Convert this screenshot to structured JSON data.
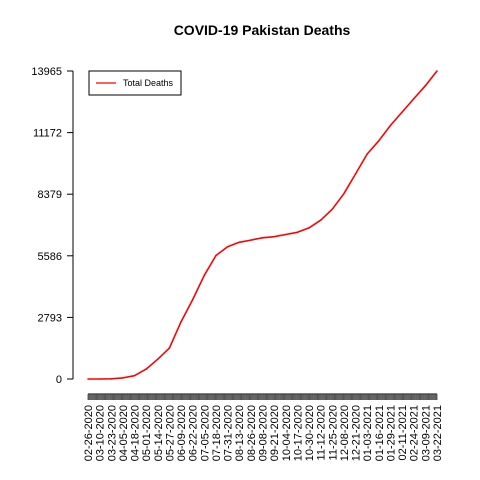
{
  "chart_data": {
    "type": "line",
    "title": "COVID-19 Pakistan Deaths",
    "xlabel": "",
    "ylabel": "",
    "ylim": [
      0,
      13965
    ],
    "y_ticks": [
      0,
      2793,
      5586,
      8379,
      11172,
      13965
    ],
    "x_tick_labels": [
      "02-26-2020",
      "03-10-2020",
      "03-23-2020",
      "04-05-2020",
      "04-18-2020",
      "05-01-2020",
      "05-14-2020",
      "05-27-2020",
      "06-09-2020",
      "06-22-2020",
      "07-05-2020",
      "07-18-2020",
      "07-31-2020",
      "08-13-2020",
      "08-26-2020",
      "09-08-2020",
      "09-21-2020",
      "10-04-2020",
      "10-17-2020",
      "10-30-2020",
      "11-12-2020",
      "11-25-2020",
      "12-08-2020",
      "12-21-2020",
      "01-03-2021",
      "01-16-2021",
      "01-29-2021",
      "02-11-2021",
      "02-24-2021",
      "03-09-2021",
      "03-22-2021"
    ],
    "grid": false,
    "legend_position": "top-left",
    "series": [
      {
        "name": "Total Deaths",
        "color": "#ff0000",
        "x": [
          "02-26-2020",
          "03-10-2020",
          "03-23-2020",
          "04-05-2020",
          "04-18-2020",
          "05-01-2020",
          "05-14-2020",
          "05-27-2020",
          "06-09-2020",
          "06-22-2020",
          "07-05-2020",
          "07-18-2020",
          "07-31-2020",
          "08-13-2020",
          "08-26-2020",
          "09-08-2020",
          "09-21-2020",
          "10-04-2020",
          "10-17-2020",
          "10-30-2020",
          "11-12-2020",
          "11-25-2020",
          "12-08-2020",
          "12-21-2020",
          "01-03-2021",
          "01-16-2021",
          "01-29-2021",
          "02-11-2021",
          "02-24-2021",
          "03-09-2021",
          "03-22-2021"
        ],
        "values": [
          0,
          0,
          10,
          50,
          150,
          450,
          900,
          1400,
          2600,
          3600,
          4700,
          5600,
          6000,
          6200,
          6300,
          6400,
          6450,
          6550,
          6650,
          6850,
          7200,
          7700,
          8400,
          9300,
          10200,
          10800,
          11500,
          12100,
          12700,
          13300,
          13965
        ]
      }
    ]
  }
}
